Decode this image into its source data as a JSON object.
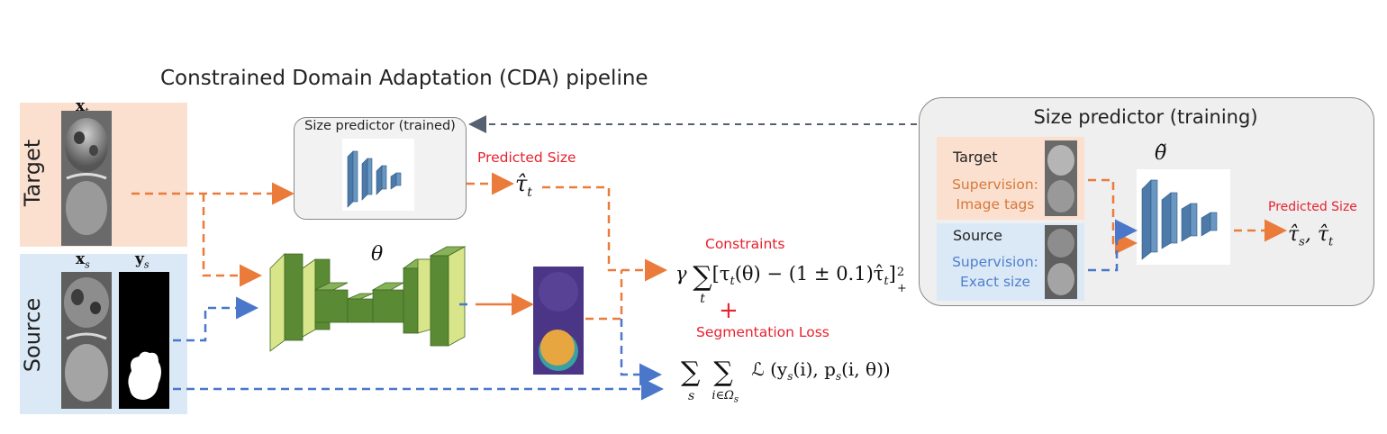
{
  "title": "Constrained Domain Adaptation (CDA) pipeline",
  "target_label": "Target",
  "source_label": "Source",
  "xt": "x",
  "xt_sub": "t",
  "xs": "x",
  "xs_sub": "s",
  "ys": "y",
  "ys_sub": "s",
  "size_predictor_trained": "Size predictor (trained)",
  "predicted_size": "Predicted Size",
  "tau_t": "τ̂",
  "tau_t_sub": "t",
  "theta": "θ",
  "constraints": "Constraints",
  "plus": "+",
  "segmentation_loss": "Segmentation Loss",
  "constraint_formula": {
    "gamma": "γ",
    "sum": "∑",
    "sum_sub": "t",
    "body": "[τ",
    "body_sub": "t",
    "body2": "(θ) − (1 ± 0.1)τ̂",
    "body2_sub": "t",
    "bracket": "]",
    "sup": "2",
    "sub_plus": "+"
  },
  "loss_formula": {
    "sum1": "∑",
    "sum1_sub": "s",
    "sum2": "∑",
    "sum2_sub": "i∈Ω",
    "sum2_subsub": "s",
    "body": "ℒ (y",
    "body_sub1": "s",
    "body_mid": "(i), p",
    "body_sub2": "s",
    "body_end": "(i, θ))"
  },
  "training": {
    "title": "Size predictor (training)",
    "target": "Target",
    "target_sup1": "Supervision:",
    "target_sup2": "Image tags",
    "source": "Source",
    "source_sup1": "Supervision:",
    "source_sup2": "Exact size",
    "theta_tilde": "θ̃",
    "predicted_size": "Predicted Size",
    "out": "τ̂",
    "out_sub1": "s",
    "out_mid": ", τ̂",
    "out_sub2": "t"
  },
  "colors": {
    "orange": "#ea7b3a",
    "blue": "#4a77c9",
    "dark_dash": "#556070",
    "red": "#e8212e",
    "unet_green_dark": "#5a8a34",
    "unet_green_light": "#d9e58a",
    "small_net_blue": "#4d7aa8"
  }
}
